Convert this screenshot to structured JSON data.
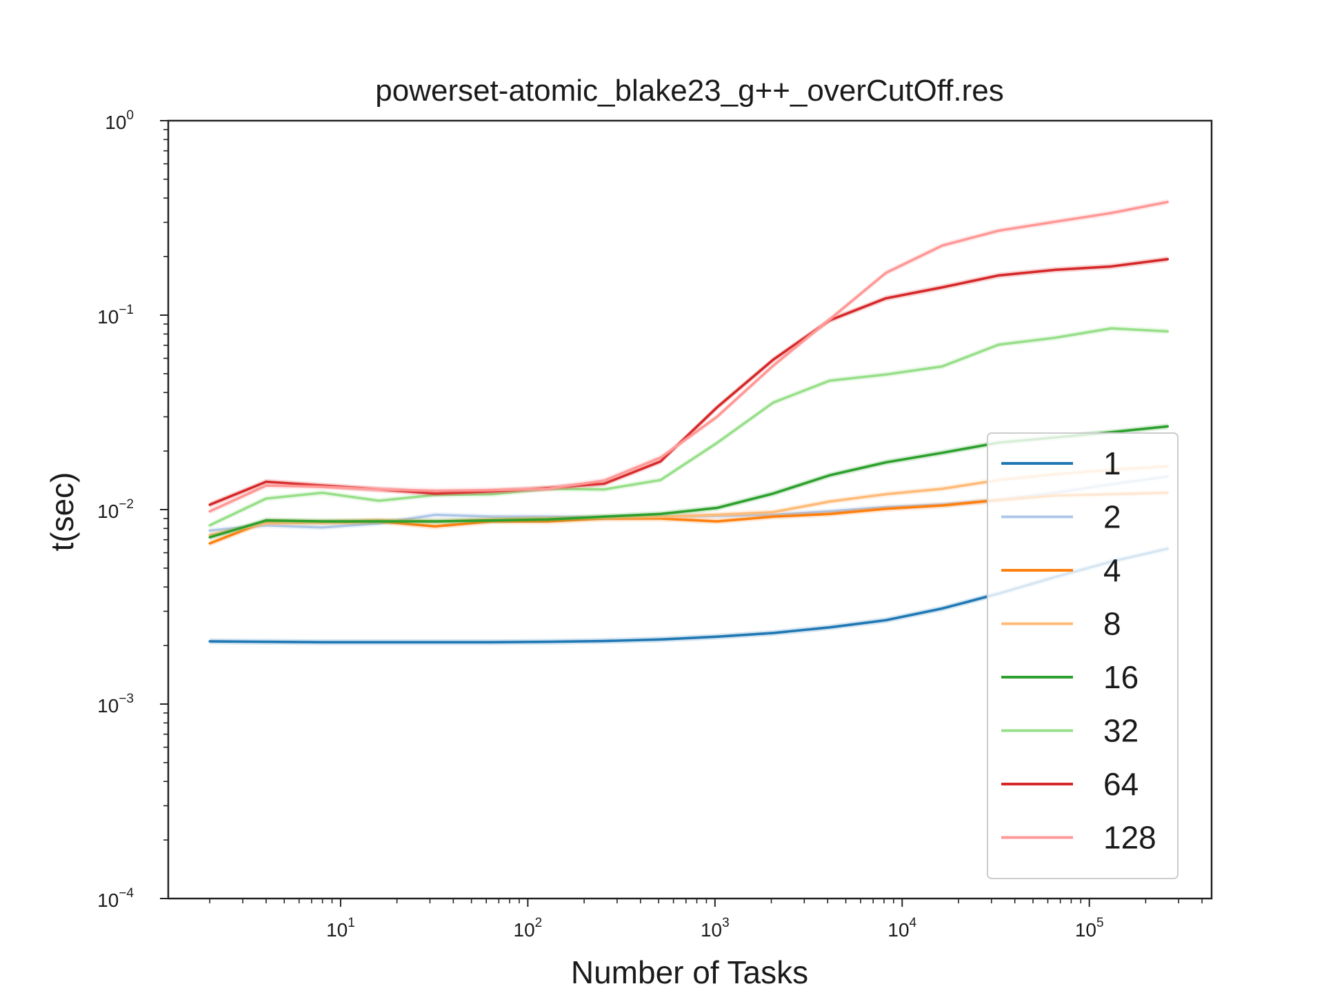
{
  "chart_data": {
    "type": "line",
    "title": "powerset-atomic_blake23_g++_overCutOff.res",
    "xlabel": "Number of Tasks",
    "ylabel": "t(sec)",
    "xscale": "log",
    "yscale": "log",
    "xlim": [
      1.2,
      450000
    ],
    "ylim": [
      0.0001,
      1
    ],
    "x_ticks": [
      {
        "base": "10",
        "exp": "1"
      },
      {
        "base": "10",
        "exp": "2"
      },
      {
        "base": "10",
        "exp": "3"
      },
      {
        "base": "10",
        "exp": "4"
      },
      {
        "base": "10",
        "exp": "5"
      }
    ],
    "y_ticks": [
      {
        "base": "10",
        "exp": "−4"
      },
      {
        "base": "10",
        "exp": "−3"
      },
      {
        "base": "10",
        "exp": "−2"
      },
      {
        "base": "10",
        "exp": "−1"
      },
      {
        "base": "10",
        "exp": "0"
      }
    ],
    "legend_position": "lower right",
    "x": [
      2,
      4,
      8,
      16,
      32,
      64,
      128,
      256,
      512,
      1024,
      2048,
      4096,
      8192,
      16384,
      32768,
      65536,
      131072,
      262144
    ],
    "series": [
      {
        "name": "1",
        "color": "#1f77b4",
        "values": [
          0.0021,
          0.00209,
          0.00208,
          0.00208,
          0.00208,
          0.00208,
          0.00209,
          0.00211,
          0.00215,
          0.00222,
          0.00232,
          0.00248,
          0.0027,
          0.0031,
          0.0037,
          0.0045,
          0.0054,
          0.0063
        ]
      },
      {
        "name": "2",
        "color": "#aec7e8",
        "values": [
          0.0078,
          0.0083,
          0.0081,
          0.0085,
          0.0094,
          0.0092,
          0.0092,
          0.0091,
          0.0092,
          0.0093,
          0.0094,
          0.0098,
          0.0103,
          0.0106,
          0.0112,
          0.0122,
          0.0135,
          0.0148
        ]
      },
      {
        "name": "4",
        "color": "#ff7f0e",
        "values": [
          0.0067,
          0.0087,
          0.0086,
          0.0087,
          0.0082,
          0.0087,
          0.0087,
          0.009,
          0.009,
          0.0087,
          0.0092,
          0.0095,
          0.0101,
          0.0105,
          0.0112,
          0.0118,
          0.012,
          0.0122
        ]
      },
      {
        "name": "8",
        "color": "#ffbb78",
        "values": [
          0.0074,
          0.0085,
          0.0086,
          0.0088,
          0.0087,
          0.0089,
          0.009,
          0.0091,
          0.0092,
          0.0094,
          0.0097,
          0.011,
          0.012,
          0.0128,
          0.0142,
          0.0152,
          0.016,
          0.0167
        ]
      },
      {
        "name": "16",
        "color": "#2ca02c",
        "values": [
          0.0072,
          0.0088,
          0.0087,
          0.0087,
          0.0087,
          0.0088,
          0.0089,
          0.0092,
          0.0095,
          0.0102,
          0.0121,
          0.015,
          0.0175,
          0.0196,
          0.0221,
          0.0235,
          0.025,
          0.0268
        ]
      },
      {
        "name": "32",
        "color": "#98df8a",
        "values": [
          0.0083,
          0.0114,
          0.0122,
          0.0111,
          0.0119,
          0.012,
          0.0128,
          0.0127,
          0.0142,
          0.022,
          0.0355,
          0.046,
          0.0495,
          0.0545,
          0.0705,
          0.0765,
          0.0855,
          0.0825
        ]
      },
      {
        "name": "64",
        "color": "#d62728",
        "values": [
          0.0106,
          0.0139,
          0.0133,
          0.0127,
          0.0121,
          0.0124,
          0.0129,
          0.0136,
          0.0177,
          0.0335,
          0.059,
          0.094,
          0.122,
          0.139,
          0.16,
          0.171,
          0.178,
          0.194
        ]
      },
      {
        "name": "128",
        "color": "#ff9896",
        "values": [
          0.0098,
          0.0133,
          0.0131,
          0.0127,
          0.0125,
          0.0126,
          0.0128,
          0.0141,
          0.0185,
          0.03,
          0.055,
          0.095,
          0.165,
          0.228,
          0.272,
          0.302,
          0.335,
          0.382
        ]
      }
    ]
  }
}
